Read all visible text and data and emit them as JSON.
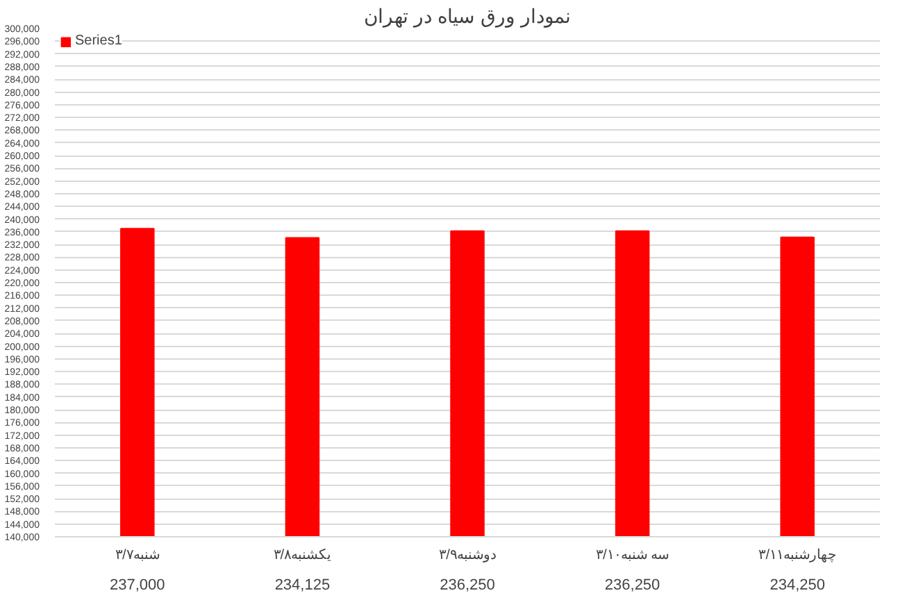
{
  "chart_data": {
    "type": "bar",
    "title": "نمودار ورق سیاه در تهران",
    "categories": [
      "شنبه۳/۷",
      "یکشنبه۳/۸",
      "دوشنبه۳/۹",
      "سه شنبه۳/۱۰",
      "چهارشنبه۳/۱۱"
    ],
    "series": [
      {
        "name": "Series1",
        "color": "#ff0000",
        "values": [
          237000,
          234125,
          236250,
          236250,
          234250
        ],
        "value_labels": [
          "237,000",
          "234,125",
          "236,250",
          "236,250",
          "234,250"
        ]
      }
    ],
    "ylim": [
      140000,
      300000
    ],
    "yticks": [
      {
        "value": 140000,
        "label": "140,000"
      },
      {
        "value": 144000,
        "label": "144,000"
      },
      {
        "value": 148000,
        "label": "148,000"
      },
      {
        "value": 152000,
        "label": "152,000"
      },
      {
        "value": 156000,
        "label": "156,000"
      },
      {
        "value": 160000,
        "label": "160,000"
      },
      {
        "value": 164000,
        "label": "164,000"
      },
      {
        "value": 168000,
        "label": "168,000"
      },
      {
        "value": 172000,
        "label": "172,000"
      },
      {
        "value": 176000,
        "label": "176,000"
      },
      {
        "value": 180000,
        "label": "180,000"
      },
      {
        "value": 184000,
        "label": "184,000"
      },
      {
        "value": 188000,
        "label": "188,000"
      },
      {
        "value": 192000,
        "label": "192,000"
      },
      {
        "value": 196000,
        "label": "196,000"
      },
      {
        "value": 200000,
        "label": "200,000"
      },
      {
        "value": 204000,
        "label": "204,000"
      },
      {
        "value": 208000,
        "label": "208,000"
      },
      {
        "value": 212000,
        "label": "212,000"
      },
      {
        "value": 216000,
        "label": "216,000"
      },
      {
        "value": 220000,
        "label": "220,000"
      },
      {
        "value": 224000,
        "label": "224,000"
      },
      {
        "value": 228000,
        "label": "228,000"
      },
      {
        "value": 232000,
        "label": "232,000"
      },
      {
        "value": 236000,
        "label": "236,000"
      },
      {
        "value": 240000,
        "label": "240,000"
      },
      {
        "value": 244000,
        "label": "244,000"
      },
      {
        "value": 248000,
        "label": "248,000"
      },
      {
        "value": 252000,
        "label": "252,000"
      },
      {
        "value": 256000,
        "label": "256,000"
      },
      {
        "value": 260000,
        "label": "260,000"
      },
      {
        "value": 264000,
        "label": "264,000"
      },
      {
        "value": 268000,
        "label": "268,000"
      },
      {
        "value": 272000,
        "label": "272,000"
      },
      {
        "value": 276000,
        "label": "276,000"
      },
      {
        "value": 280000,
        "label": "280,000"
      },
      {
        "value": 284000,
        "label": "284,000"
      },
      {
        "value": 288000,
        "label": "288,000"
      },
      {
        "value": 292000,
        "label": "292,000"
      },
      {
        "value": 296000,
        "label": "296,000"
      },
      {
        "value": 300000,
        "label": "300,000"
      }
    ],
    "grid": "y",
    "legend": "top left"
  }
}
